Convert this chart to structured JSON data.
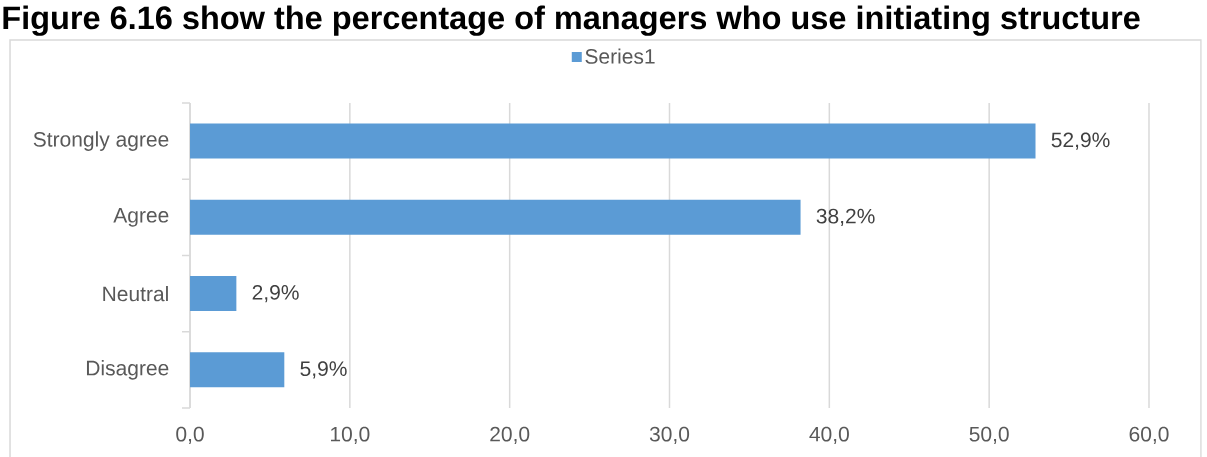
{
  "chart_data": {
    "type": "bar",
    "orientation": "horizontal",
    "title": "Figure 6.16 show the percentage of managers who use initiating structure",
    "categories": [
      "Strongly agree",
      "Agree",
      "Neutral",
      "Disagree"
    ],
    "series": [
      {
        "name": "Series1",
        "color": "#5b9bd5",
        "values": [
          52.9,
          38.2,
          2.9,
          5.9
        ],
        "value_labels": [
          "52,9%",
          "38,2%",
          "2,9%",
          "5,9%"
        ]
      }
    ],
    "xlim": [
      0,
      60
    ],
    "xticks": [
      {
        "value": 0,
        "label": "0,0"
      },
      {
        "value": 10,
        "label": "10,0"
      },
      {
        "value": 20,
        "label": "20,0"
      },
      {
        "value": 30,
        "label": "30,0"
      },
      {
        "value": 40,
        "label": "40,0"
      },
      {
        "value": 50,
        "label": "50,0"
      },
      {
        "value": 60,
        "label": "60,0"
      }
    ],
    "grid": "x",
    "legend": "top"
  }
}
